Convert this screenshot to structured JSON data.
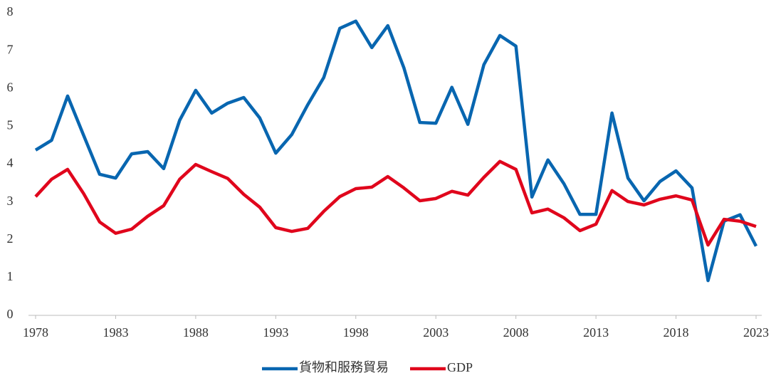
{
  "chart_data": {
    "type": "line",
    "x": [
      1978,
      1979,
      1980,
      1981,
      1982,
      1983,
      1984,
      1985,
      1986,
      1987,
      1988,
      1989,
      1990,
      1991,
      1992,
      1993,
      1994,
      1995,
      1996,
      1997,
      1998,
      1999,
      2000,
      2001,
      2002,
      2003,
      2004,
      2005,
      2006,
      2007,
      2008,
      2009,
      2010,
      2011,
      2012,
      2013,
      2014,
      2015,
      2016,
      2017,
      2018,
      2019,
      2020,
      2021,
      2022,
      2023
    ],
    "series": [
      {
        "name": "貨物和服務貿易",
        "color": "#0866b0",
        "values": [
          4.37,
          4.63,
          5.8,
          4.76,
          3.73,
          3.63,
          4.27,
          4.33,
          3.88,
          5.16,
          5.95,
          5.35,
          5.61,
          5.76,
          5.22,
          4.29,
          4.78,
          5.57,
          6.29,
          7.59,
          7.78,
          7.08,
          7.66,
          6.55,
          5.1,
          5.08,
          6.03,
          5.05,
          6.63,
          7.4,
          7.12,
          3.13,
          4.11,
          3.48,
          2.67,
          2.67,
          5.35,
          3.63,
          3.03,
          3.54,
          3.82,
          3.37,
          0.92,
          2.49,
          2.66,
          1.83
        ]
      },
      {
        "name": "GDP",
        "color": "#e0061c",
        "values": [
          3.14,
          3.6,
          3.86,
          3.22,
          2.47,
          2.17,
          2.28,
          2.62,
          2.9,
          3.6,
          3.99,
          3.8,
          3.62,
          3.2,
          2.86,
          2.32,
          2.22,
          2.3,
          2.75,
          3.14,
          3.35,
          3.39,
          3.67,
          3.37,
          3.03,
          3.09,
          3.28,
          3.18,
          3.65,
          4.07,
          3.86,
          2.71,
          2.81,
          2.58,
          2.24,
          2.41,
          3.3,
          3.01,
          2.92,
          3.07,
          3.16,
          3.05,
          1.86,
          2.54,
          2.49,
          2.35
        ]
      }
    ],
    "xlim": [
      1978,
      2023
    ],
    "xticks": [
      1978,
      1983,
      1988,
      1993,
      1998,
      2003,
      2008,
      2013,
      2018,
      2023
    ],
    "ylim": [
      0,
      8
    ],
    "yticks": [
      0,
      1,
      2,
      3,
      4,
      5,
      6,
      7,
      8
    ],
    "grid": false,
    "legend": "bottom"
  }
}
